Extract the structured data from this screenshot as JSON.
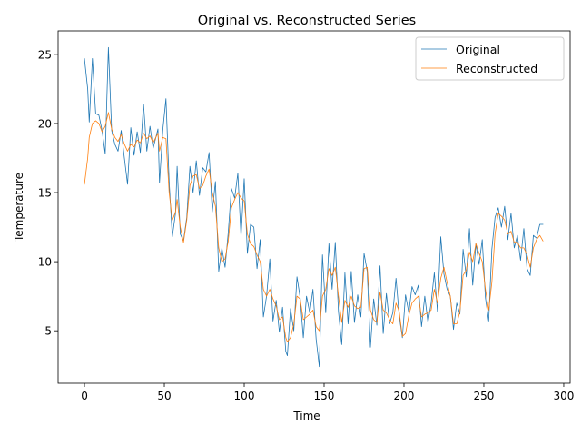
{
  "chart_data": {
    "type": "line",
    "title": "Original vs. Reconstructed Series",
    "xlabel": "Time",
    "ylabel": "Temperature",
    "xlim": [
      -16.5,
      304
    ],
    "ylim": [
      1.2,
      26.7
    ],
    "xticks": [
      0,
      50,
      100,
      150,
      200,
      250,
      300
    ],
    "yticks": [
      5,
      10,
      15,
      20,
      25
    ],
    "grid": false,
    "legend_position": "top-right",
    "series": [
      {
        "name": "Original",
        "color": "#1f77b4",
        "keypoints": [
          [
            0,
            24.7
          ],
          [
            2,
            22.5
          ],
          [
            3,
            20.1
          ],
          [
            5,
            24.7
          ],
          [
            7,
            20.7
          ],
          [
            9,
            20.6
          ],
          [
            11,
            19.5
          ],
          [
            13,
            17.8
          ],
          [
            15,
            25.5
          ],
          [
            17,
            19.5
          ],
          [
            19,
            18.5
          ],
          [
            21,
            18.0
          ],
          [
            23,
            19.5
          ],
          [
            25,
            17.5
          ],
          [
            27,
            15.6
          ],
          [
            29,
            19.7
          ],
          [
            31,
            17.7
          ],
          [
            33,
            19.4
          ],
          [
            35,
            17.9
          ],
          [
            37,
            21.4
          ],
          [
            39,
            18.0
          ],
          [
            41,
            19.8
          ],
          [
            43,
            18.2
          ],
          [
            46,
            19.6
          ],
          [
            47,
            15.7
          ],
          [
            49,
            19.5
          ],
          [
            51,
            21.8
          ],
          [
            53,
            15.8
          ],
          [
            55,
            11.8
          ],
          [
            57,
            13.5
          ],
          [
            58,
            16.9
          ],
          [
            60,
            12.0
          ],
          [
            62,
            11.5
          ],
          [
            64,
            13.2
          ],
          [
            66,
            16.9
          ],
          [
            68,
            15.0
          ],
          [
            70,
            17.3
          ],
          [
            72,
            14.8
          ],
          [
            74,
            16.8
          ],
          [
            76,
            16.5
          ],
          [
            78,
            17.9
          ],
          [
            80,
            13.6
          ],
          [
            82,
            15.8
          ],
          [
            84,
            9.3
          ],
          [
            86,
            11.0
          ],
          [
            88,
            9.6
          ],
          [
            90,
            12.1
          ],
          [
            92,
            15.3
          ],
          [
            94,
            14.6
          ],
          [
            96,
            16.4
          ],
          [
            98,
            11.8
          ],
          [
            100,
            16.0
          ],
          [
            102,
            10.6
          ],
          [
            104,
            12.7
          ],
          [
            106,
            12.5
          ],
          [
            108,
            9.5
          ],
          [
            110,
            11.6
          ],
          [
            112,
            6.0
          ],
          [
            114,
            7.5
          ],
          [
            116,
            10.2
          ],
          [
            118,
            5.7
          ],
          [
            120,
            7.2
          ],
          [
            122,
            4.9
          ],
          [
            124,
            6.7
          ],
          [
            126,
            3.5
          ],
          [
            127,
            3.2
          ],
          [
            129,
            6.6
          ],
          [
            131,
            5.0
          ],
          [
            133,
            8.9
          ],
          [
            135,
            7.4
          ],
          [
            137,
            4.5
          ],
          [
            139,
            7.5
          ],
          [
            141,
            6.3
          ],
          [
            143,
            8.0
          ],
          [
            145,
            4.4
          ],
          [
            147,
            2.4
          ],
          [
            149,
            10.5
          ],
          [
            151,
            6.3
          ],
          [
            153,
            11.3
          ],
          [
            155,
            8.0
          ],
          [
            157,
            11.4
          ],
          [
            159,
            6.4
          ],
          [
            161,
            4.0
          ],
          [
            163,
            9.2
          ],
          [
            165,
            5.5
          ],
          [
            167,
            9.3
          ],
          [
            169,
            5.6
          ],
          [
            171,
            7.6
          ],
          [
            173,
            6.0
          ],
          [
            175,
            10.6
          ],
          [
            177,
            9.3
          ],
          [
            179,
            3.8
          ],
          [
            181,
            7.3
          ],
          [
            183,
            5.4
          ],
          [
            185,
            9.7
          ],
          [
            187,
            4.8
          ],
          [
            189,
            7.7
          ],
          [
            191,
            5.5
          ],
          [
            193,
            6.3
          ],
          [
            195,
            8.8
          ],
          [
            197,
            6.1
          ],
          [
            199,
            4.5
          ],
          [
            201,
            7.6
          ],
          [
            203,
            6.3
          ],
          [
            205,
            8.2
          ],
          [
            207,
            7.6
          ],
          [
            209,
            8.3
          ],
          [
            211,
            5.3
          ],
          [
            213,
            7.5
          ],
          [
            215,
            5.6
          ],
          [
            217,
            7.0
          ],
          [
            219,
            9.2
          ],
          [
            221,
            6.4
          ],
          [
            223,
            11.8
          ],
          [
            225,
            9.1
          ],
          [
            227,
            8.0
          ],
          [
            229,
            7.5
          ],
          [
            231,
            5.1
          ],
          [
            233,
            7.0
          ],
          [
            235,
            6.2
          ],
          [
            237,
            10.9
          ],
          [
            239,
            8.9
          ],
          [
            241,
            12.4
          ],
          [
            243,
            8.3
          ],
          [
            245,
            11.3
          ],
          [
            247,
            9.8
          ],
          [
            249,
            11.6
          ],
          [
            251,
            7.4
          ],
          [
            253,
            5.7
          ],
          [
            255,
            10.9
          ],
          [
            257,
            13.2
          ],
          [
            259,
            13.9
          ],
          [
            261,
            12.5
          ],
          [
            263,
            14.0
          ],
          [
            265,
            11.6
          ],
          [
            267,
            13.5
          ],
          [
            269,
            11.0
          ],
          [
            271,
            11.9
          ],
          [
            273,
            10.1
          ],
          [
            275,
            12.4
          ],
          [
            277,
            9.5
          ],
          [
            279,
            9.0
          ],
          [
            281,
            11.9
          ],
          [
            283,
            11.7
          ],
          [
            285,
            12.7
          ],
          [
            287,
            12.7
          ]
        ]
      },
      {
        "name": "Reconstructed",
        "color": "#ff7f0e",
        "keypoints": [
          [
            0,
            15.6
          ],
          [
            2,
            17.5
          ],
          [
            3,
            19.0
          ],
          [
            5,
            20.0
          ],
          [
            7,
            20.2
          ],
          [
            9,
            20.0
          ],
          [
            11,
            19.4
          ],
          [
            13,
            19.8
          ],
          [
            15,
            20.8
          ],
          [
            17,
            19.6
          ],
          [
            19,
            19.0
          ],
          [
            21,
            18.7
          ],
          [
            23,
            19.2
          ],
          [
            25,
            18.5
          ],
          [
            27,
            18.0
          ],
          [
            29,
            18.5
          ],
          [
            31,
            18.3
          ],
          [
            33,
            18.8
          ],
          [
            35,
            18.6
          ],
          [
            37,
            19.3
          ],
          [
            39,
            18.9
          ],
          [
            41,
            19.1
          ],
          [
            43,
            18.6
          ],
          [
            46,
            19.3
          ],
          [
            47,
            18.0
          ],
          [
            49,
            19.0
          ],
          [
            51,
            18.9
          ],
          [
            53,
            15.0
          ],
          [
            55,
            13.0
          ],
          [
            57,
            13.6
          ],
          [
            58,
            14.5
          ],
          [
            60,
            12.5
          ],
          [
            62,
            11.4
          ],
          [
            64,
            13.0
          ],
          [
            66,
            15.5
          ],
          [
            68,
            16.2
          ],
          [
            70,
            16.3
          ],
          [
            72,
            15.3
          ],
          [
            74,
            15.5
          ],
          [
            76,
            16.2
          ],
          [
            78,
            16.7
          ],
          [
            80,
            15.0
          ],
          [
            82,
            14.0
          ],
          [
            84,
            11.0
          ],
          [
            86,
            10.0
          ],
          [
            88,
            10.2
          ],
          [
            90,
            11.5
          ],
          [
            92,
            13.9
          ],
          [
            94,
            14.5
          ],
          [
            96,
            15.0
          ],
          [
            98,
            14.6
          ],
          [
            100,
            14.4
          ],
          [
            102,
            12.0
          ],
          [
            104,
            11.3
          ],
          [
            106,
            11.1
          ],
          [
            108,
            10.5
          ],
          [
            110,
            10.0
          ],
          [
            112,
            8.0
          ],
          [
            114,
            7.5
          ],
          [
            116,
            8.0
          ],
          [
            118,
            7.3
          ],
          [
            120,
            6.8
          ],
          [
            122,
            5.8
          ],
          [
            124,
            6.0
          ],
          [
            126,
            4.5
          ],
          [
            127,
            4.2
          ],
          [
            129,
            4.5
          ],
          [
            131,
            5.5
          ],
          [
            133,
            7.5
          ],
          [
            135,
            7.3
          ],
          [
            137,
            5.8
          ],
          [
            139,
            6.0
          ],
          [
            141,
            6.2
          ],
          [
            143,
            6.5
          ],
          [
            145,
            5.3
          ],
          [
            147,
            5.0
          ],
          [
            149,
            7.5
          ],
          [
            151,
            8.0
          ],
          [
            153,
            9.5
          ],
          [
            155,
            9.0
          ],
          [
            157,
            9.6
          ],
          [
            159,
            7.5
          ],
          [
            161,
            5.6
          ],
          [
            163,
            7.2
          ],
          [
            165,
            6.7
          ],
          [
            167,
            7.5
          ],
          [
            169,
            6.8
          ],
          [
            171,
            6.6
          ],
          [
            173,
            6.7
          ],
          [
            175,
            9.5
          ],
          [
            177,
            9.6
          ],
          [
            179,
            6.5
          ],
          [
            181,
            5.8
          ],
          [
            183,
            5.6
          ],
          [
            185,
            7.8
          ],
          [
            187,
            6.5
          ],
          [
            189,
            6.3
          ],
          [
            191,
            5.8
          ],
          [
            193,
            5.5
          ],
          [
            195,
            7.0
          ],
          [
            197,
            6.4
          ],
          [
            199,
            4.6
          ],
          [
            201,
            4.8
          ],
          [
            203,
            6.1
          ],
          [
            205,
            7.0
          ],
          [
            207,
            7.3
          ],
          [
            209,
            7.5
          ],
          [
            211,
            6.0
          ],
          [
            213,
            6.2
          ],
          [
            215,
            6.3
          ],
          [
            217,
            6.5
          ],
          [
            219,
            8.0
          ],
          [
            221,
            7.0
          ],
          [
            223,
            8.8
          ],
          [
            225,
            9.6
          ],
          [
            227,
            8.5
          ],
          [
            229,
            7.5
          ],
          [
            231,
            5.5
          ],
          [
            233,
            5.5
          ],
          [
            235,
            6.4
          ],
          [
            237,
            9.0
          ],
          [
            239,
            9.4
          ],
          [
            241,
            10.7
          ],
          [
            243,
            10.0
          ],
          [
            245,
            11.3
          ],
          [
            247,
            10.6
          ],
          [
            249,
            10.0
          ],
          [
            251,
            8.0
          ],
          [
            253,
            6.5
          ],
          [
            255,
            8.5
          ],
          [
            257,
            12.0
          ],
          [
            259,
            13.5
          ],
          [
            261,
            13.3
          ],
          [
            263,
            13.0
          ],
          [
            265,
            12.0
          ],
          [
            267,
            12.2
          ],
          [
            269,
            11.4
          ],
          [
            271,
            11.4
          ],
          [
            273,
            11.0
          ],
          [
            275,
            11.0
          ],
          [
            277,
            10.5
          ],
          [
            279,
            9.6
          ],
          [
            281,
            11.0
          ],
          [
            283,
            11.6
          ],
          [
            285,
            11.9
          ],
          [
            287,
            11.5
          ]
        ]
      }
    ]
  }
}
